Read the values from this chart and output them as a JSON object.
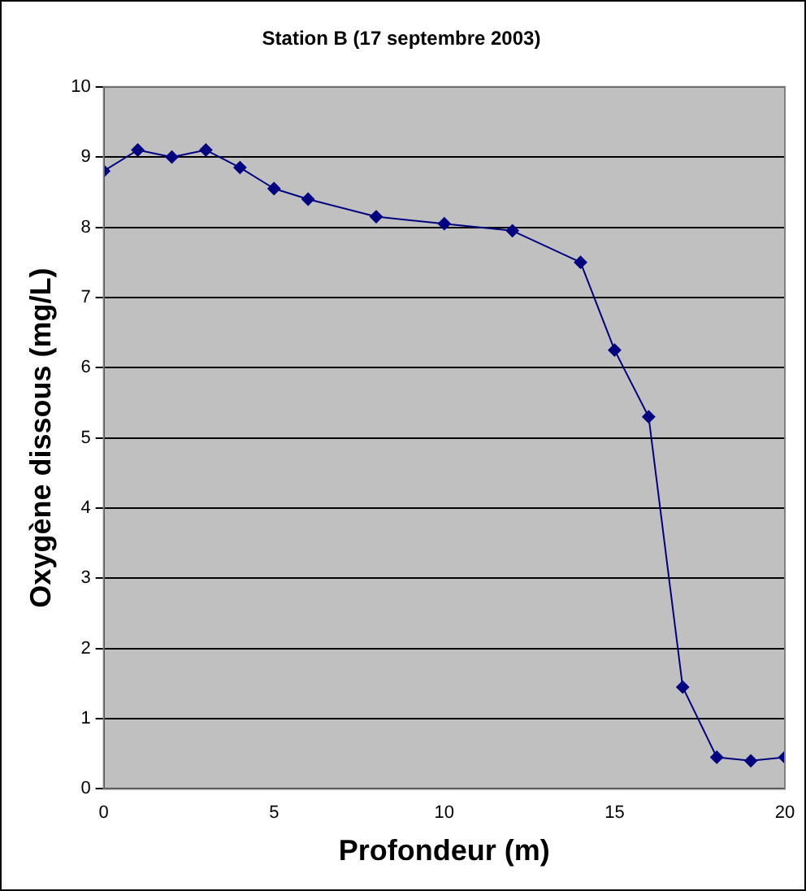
{
  "chart_data": {
    "type": "line",
    "title": "Station B (17 septembre 2003)",
    "xlabel": "Profondeur (m)",
    "ylabel": "Oxygène dissous (mg/L)",
    "x": [
      0,
      1,
      2,
      3,
      4,
      5,
      6,
      8,
      10,
      12,
      14,
      15,
      16,
      17,
      18,
      19,
      20
    ],
    "series": [
      {
        "color": "#000080",
        "values": [
          8.8,
          9.1,
          9.0,
          9.1,
          8.85,
          8.55,
          8.4,
          8.15,
          8.05,
          7.95,
          7.5,
          6.25,
          5.3,
          1.45,
          0.45,
          0.4,
          0.45
        ]
      }
    ],
    "xlim": [
      0,
      20
    ],
    "xticks": [
      0,
      5,
      10,
      15,
      20
    ],
    "ylim": [
      0,
      10
    ],
    "yticks": [
      0,
      1,
      2,
      3,
      4,
      5,
      6,
      7,
      8,
      9,
      10
    ],
    "grid": "y",
    "legend": false,
    "marker": "diamond",
    "line_style": "solid"
  }
}
